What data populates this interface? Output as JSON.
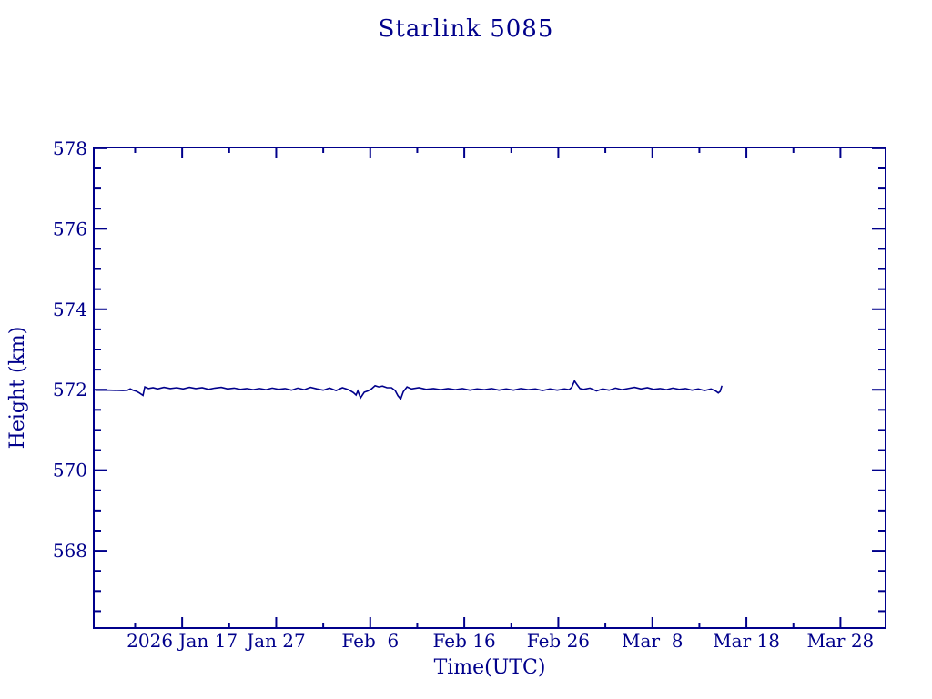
{
  "page": {
    "background_color": "#ffffff",
    "ink_color": "#00008B"
  },
  "chart_data": {
    "type": "line",
    "title": "Starlink 5085",
    "xlabel": "Time(UTC)",
    "ylabel": "Height (km)",
    "grid": false,
    "legend": "none",
    "x_axis": {
      "unit": "days since 2026-01-01 (UTC)",
      "range": [
        6.6,
        90.8
      ],
      "major_ticks": [
        {
          "day": 16,
          "label": "2026 Jan 17"
        },
        {
          "day": 26,
          "label": "Jan 27"
        },
        {
          "day": 36,
          "label": "Feb  6"
        },
        {
          "day": 46,
          "label": "Feb 16"
        },
        {
          "day": 56,
          "label": "Feb 26"
        },
        {
          "day": 66,
          "label": "Mar  8"
        },
        {
          "day": 76,
          "label": "Mar 18"
        },
        {
          "day": 86,
          "label": "Mar 28"
        }
      ],
      "minor_ticks": [
        11,
        21,
        31,
        41,
        51,
        61,
        71,
        81
      ]
    },
    "y_axis": {
      "unit": "km",
      "range": [
        566.08,
        578.02
      ],
      "major_ticks": [
        {
          "value": 568,
          "label": "568"
        },
        {
          "value": 570,
          "label": "570"
        },
        {
          "value": 572,
          "label": "572"
        },
        {
          "value": 574,
          "label": "574"
        },
        {
          "value": 576,
          "label": "576"
        },
        {
          "value": 578,
          "label": "578"
        }
      ],
      "minor_interval": 0.5
    },
    "series": [
      {
        "name": "height",
        "color": "#00008B",
        "points": [
          [
            6.8,
            571.99
          ],
          [
            8.26,
            571.99
          ],
          [
            9.71,
            571.98
          ],
          [
            10.19,
            571.99
          ],
          [
            10.48,
            572.02
          ],
          [
            10.77,
            571.99
          ],
          [
            11.16,
            571.96
          ],
          [
            11.45,
            571.92
          ],
          [
            11.84,
            571.86
          ],
          [
            12.03,
            572.07
          ],
          [
            12.42,
            572.03
          ],
          [
            12.9,
            572.05
          ],
          [
            13.39,
            572.02
          ],
          [
            14.06,
            572.06
          ],
          [
            14.74,
            572.03
          ],
          [
            15.42,
            572.05
          ],
          [
            16.1,
            572.02
          ],
          [
            16.77,
            572.06
          ],
          [
            17.45,
            572.03
          ],
          [
            18.13,
            572.05
          ],
          [
            18.81,
            572.01
          ],
          [
            19.48,
            572.04
          ],
          [
            20.16,
            572.06
          ],
          [
            20.84,
            572.02
          ],
          [
            21.52,
            572.04
          ],
          [
            22.2,
            572.01
          ],
          [
            22.87,
            572.03
          ],
          [
            23.55,
            572.0
          ],
          [
            24.23,
            572.03
          ],
          [
            24.91,
            572.0
          ],
          [
            25.58,
            572.04
          ],
          [
            26.26,
            572.01
          ],
          [
            26.94,
            572.03
          ],
          [
            27.62,
            571.99
          ],
          [
            28.29,
            572.04
          ],
          [
            28.97,
            572.0
          ],
          [
            29.65,
            572.06
          ],
          [
            30.33,
            572.02
          ],
          [
            31.0,
            571.99
          ],
          [
            31.68,
            572.04
          ],
          [
            32.36,
            571.98
          ],
          [
            33.04,
            572.05
          ],
          [
            33.71,
            572.0
          ],
          [
            34.2,
            571.93
          ],
          [
            34.49,
            571.87
          ],
          [
            34.68,
            571.97
          ],
          [
            34.97,
            571.8
          ],
          [
            35.36,
            571.94
          ],
          [
            35.75,
            571.97
          ],
          [
            36.13,
            572.02
          ],
          [
            36.52,
            572.1
          ],
          [
            36.91,
            572.07
          ],
          [
            37.3,
            572.09
          ],
          [
            37.78,
            572.05
          ],
          [
            38.26,
            572.05
          ],
          [
            38.65,
            571.98
          ],
          [
            38.94,
            571.85
          ],
          [
            39.23,
            571.77
          ],
          [
            39.52,
            571.95
          ],
          [
            39.91,
            572.07
          ],
          [
            40.39,
            572.02
          ],
          [
            41.17,
            572.05
          ],
          [
            41.94,
            572.01
          ],
          [
            42.72,
            572.03
          ],
          [
            43.49,
            572.0
          ],
          [
            44.27,
            572.03
          ],
          [
            45.04,
            572.0
          ],
          [
            45.81,
            572.03
          ],
          [
            46.59,
            571.99
          ],
          [
            47.36,
            572.02
          ],
          [
            48.14,
            572.0
          ],
          [
            48.91,
            572.03
          ],
          [
            49.69,
            571.99
          ],
          [
            50.46,
            572.02
          ],
          [
            51.24,
            571.99
          ],
          [
            52.01,
            572.03
          ],
          [
            52.79,
            572.0
          ],
          [
            53.56,
            572.02
          ],
          [
            54.33,
            571.98
          ],
          [
            55.11,
            572.02
          ],
          [
            55.88,
            571.99
          ],
          [
            56.66,
            572.02
          ],
          [
            57.14,
            572.0
          ],
          [
            57.43,
            572.06
          ],
          [
            57.72,
            572.22
          ],
          [
            58.01,
            572.12
          ],
          [
            58.3,
            572.03
          ],
          [
            58.69,
            572.01
          ],
          [
            59.37,
            572.04
          ],
          [
            60.05,
            571.97
          ],
          [
            60.72,
            572.02
          ],
          [
            61.4,
            571.99
          ],
          [
            62.08,
            572.04
          ],
          [
            62.76,
            572.0
          ],
          [
            63.43,
            572.03
          ],
          [
            64.11,
            572.06
          ],
          [
            64.79,
            572.02
          ],
          [
            65.47,
            572.05
          ],
          [
            66.14,
            572.01
          ],
          [
            66.82,
            572.03
          ],
          [
            67.5,
            572.0
          ],
          [
            68.17,
            572.04
          ],
          [
            68.85,
            572.01
          ],
          [
            69.53,
            572.03
          ],
          [
            70.21,
            571.99
          ],
          [
            70.88,
            572.02
          ],
          [
            71.56,
            571.98
          ],
          [
            72.24,
            572.02
          ],
          [
            72.72,
            571.97
          ],
          [
            73.01,
            571.92
          ],
          [
            73.21,
            571.96
          ],
          [
            73.4,
            572.1
          ]
        ]
      }
    ]
  }
}
